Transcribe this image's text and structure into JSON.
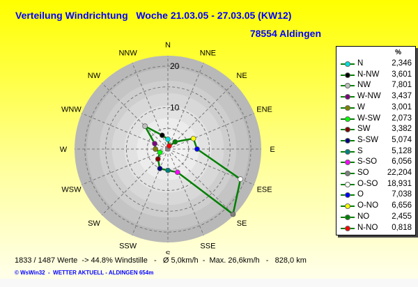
{
  "header": {
    "title": "Verteilung Windrichtung   Woche 21.03.05 - 27.03.05 (KW12)",
    "station": "78554 Aldingen"
  },
  "chart_data": {
    "type": "polar-line",
    "title": "Verteilung Windrichtung   Woche 21.03.05 - 27.03.05 (KW12)",
    "directions": [
      "N",
      "NNE",
      "NE",
      "ENE",
      "E",
      "ESE",
      "SE",
      "SSE",
      "S",
      "SSW",
      "SW",
      "WSW",
      "W",
      "WNW",
      "NW",
      "NNW"
    ],
    "values": [
      2.346,
      0.818,
      2.455,
      6.656,
      7.038,
      18.931,
      22.204,
      6.056,
      5.128,
      5.074,
      3.382,
      2.073,
      3.001,
      3.437,
      7.801,
      3.601
    ],
    "marker_colors": [
      "#00e0e0",
      "#ff0000",
      "#008000",
      "#ffff00",
      "#0000ff",
      "#ffffff",
      "#808080",
      "#ff00ff",
      "#008080",
      "#000080",
      "#800000",
      "#00ff00",
      "#808000",
      "#800080",
      "#c0c0c0",
      "#000000"
    ],
    "line_color": "#008000",
    "radial_ticks": [
      10,
      20
    ],
    "rlim": [
      0,
      22.5
    ],
    "grid": true,
    "legend": {
      "header": "%",
      "placement": "right",
      "entries": [
        {
          "name": "N",
          "value": "2,346",
          "color": "#00e0e0"
        },
        {
          "name": "N-NW",
          "value": "3,601",
          "color": "#000000"
        },
        {
          "name": "NW",
          "value": "7,801",
          "color": "#c0c0c0"
        },
        {
          "name": "W-NW",
          "value": "3,437",
          "color": "#800080"
        },
        {
          "name": "W",
          "value": "3,001",
          "color": "#808000"
        },
        {
          "name": "W-SW",
          "value": "2,073",
          "color": "#00ff00"
        },
        {
          "name": "SW",
          "value": "3,382",
          "color": "#800000"
        },
        {
          "name": "S-SW",
          "value": "5,074",
          "color": "#000080"
        },
        {
          "name": "S",
          "value": "5,128",
          "color": "#008080"
        },
        {
          "name": "S-SO",
          "value": "6,056",
          "color": "#ff00ff"
        },
        {
          "name": "SO",
          "value": "22,204",
          "color": "#808080"
        },
        {
          "name": "O-SO",
          "value": "18,931",
          "color": "#ffffff"
        },
        {
          "name": "O",
          "value": "7,038",
          "color": "#0000ff"
        },
        {
          "name": "O-NO",
          "value": "6,656",
          "color": "#ffff00"
        },
        {
          "name": "NO",
          "value": "2,455",
          "color": "#008000"
        },
        {
          "name": "N-NO",
          "value": "0,818",
          "color": "#ff0000"
        }
      ]
    }
  },
  "footer": {
    "stats": "1833 / 1487 Werte  -> 44.8% Windstille   -   Ø 5,0km/h  -  Max. 26,6km/h   -   828,0 km",
    "credit": "© WsWin32  -  WETTER AKTUELL - ALDINGEN 654m"
  }
}
